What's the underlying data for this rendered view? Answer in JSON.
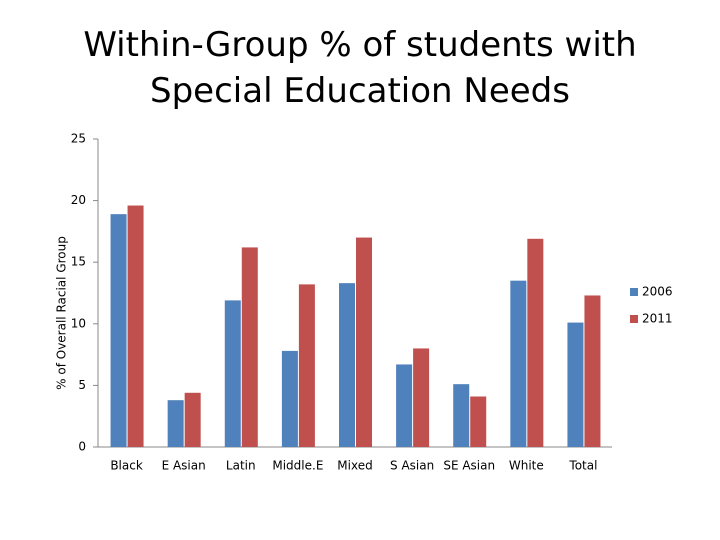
{
  "chart_data": {
    "type": "bar",
    "title": "Within-Group % of students with Special Education Needs",
    "y_label": "% of Overall Racial Group",
    "categories": [
      "Black",
      "E Asian",
      "Latin",
      "Middle.E",
      "Mixed",
      "S Asian",
      "SE Asian",
      "White",
      "Total"
    ],
    "series": [
      {
        "name": "2006",
        "color": "#4f81bd",
        "values": [
          18.9,
          3.8,
          11.9,
          7.8,
          13.3,
          6.7,
          5.1,
          13.5,
          10.1
        ]
      },
      {
        "name": "2011",
        "color": "#c0504d",
        "values": [
          19.6,
          4.4,
          16.2,
          13.2,
          17.0,
          8.0,
          4.1,
          16.9,
          12.3
        ]
      }
    ],
    "ylim": [
      0,
      25
    ],
    "yticks": [
      0,
      5,
      10,
      15,
      20,
      25
    ],
    "grid": false,
    "legend": "right"
  }
}
